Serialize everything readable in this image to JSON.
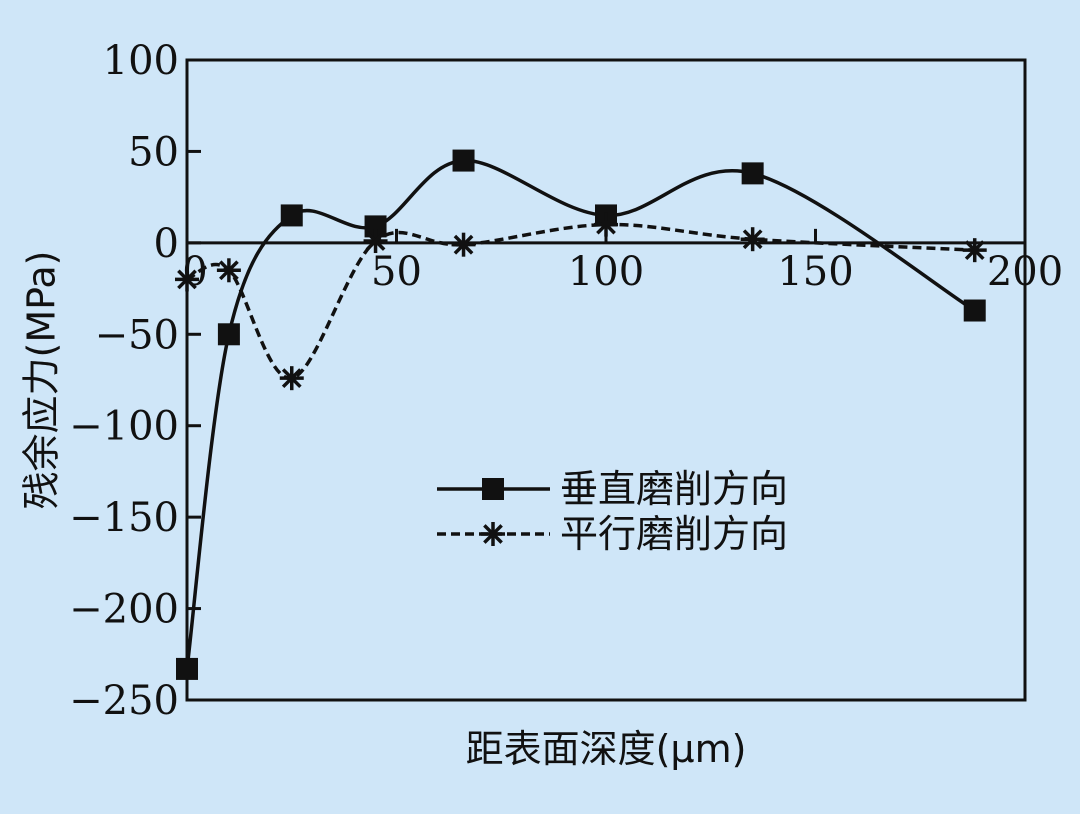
{
  "chart_data": {
    "type": "line",
    "xlabel": "距表面深度(μm)",
    "ylabel": "残余应力(MPa)",
    "xlim": [
      0,
      200
    ],
    "ylim": [
      -250,
      100
    ],
    "xticks": [
      0,
      50,
      100,
      150,
      200
    ],
    "yticks": [
      100,
      50,
      0,
      -50,
      -100,
      -150,
      -200,
      -250
    ],
    "xtick_labels": [
      "0",
      "50",
      "100",
      "150",
      "200"
    ],
    "ytick_labels": [
      "100",
      "50",
      "0",
      "−50",
      "−100",
      "−150",
      "−200",
      "−250"
    ],
    "grid": false,
    "zero_line": true,
    "legend_position": "center-right",
    "series": [
      {
        "name": "垂直磨削方向",
        "marker": "square",
        "line_style": "solid",
        "color": "#111111",
        "x": [
          0,
          10,
          25,
          45,
          66,
          100,
          135,
          188
        ],
        "y": [
          -233,
          -50,
          15,
          9,
          45,
          15,
          38,
          -37
        ]
      },
      {
        "name": "平行磨削方向",
        "marker": "asterisk",
        "line_style": "dashed",
        "color": "#111111",
        "x": [
          0,
          10,
          25,
          45,
          66,
          100,
          135,
          188
        ],
        "y": [
          -20,
          -15,
          -74,
          1,
          -1,
          10,
          2,
          -4
        ]
      }
    ]
  }
}
